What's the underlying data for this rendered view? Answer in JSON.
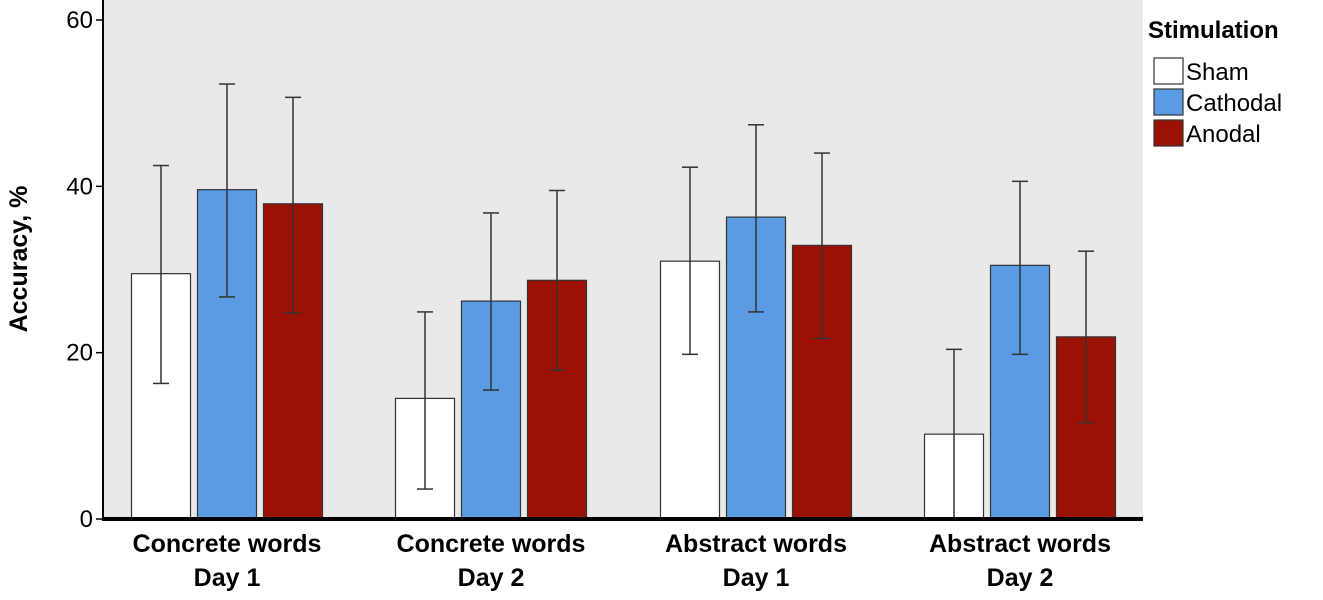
{
  "chart_data": {
    "type": "bar",
    "title": "",
    "xlabel": "",
    "ylabel": "Accuracy, %",
    "ylim": [
      0,
      60
    ],
    "yticks": [
      0,
      20,
      40,
      60
    ],
    "grid": false,
    "background": "#e9e9e9",
    "categories": [
      [
        "Concrete words",
        "Day 1"
      ],
      [
        "Concrete words",
        "Day 2"
      ],
      [
        "Abstract words",
        "Day 1"
      ],
      [
        "Abstract words",
        "Day 2"
      ]
    ],
    "legend": {
      "title": "Stimulation",
      "placement": "right"
    },
    "series": [
      {
        "name": "Sham",
        "color": "#ffffff",
        "values": [
          29.5,
          14.5,
          31.0,
          10.2
        ],
        "error_low": [
          16.3,
          3.6,
          19.8,
          0.0
        ],
        "error_high": [
          42.5,
          24.9,
          42.3,
          20.4
        ]
      },
      {
        "name": "Cathodal",
        "color": "#5a9be3",
        "values": [
          39.6,
          26.2,
          36.3,
          30.5
        ],
        "error_low": [
          26.7,
          15.5,
          24.9,
          19.8
        ],
        "error_high": [
          52.3,
          36.8,
          47.4,
          40.6
        ]
      },
      {
        "name": "Anodal",
        "color": "#9b1205",
        "values": [
          37.9,
          28.7,
          32.9,
          21.9
        ],
        "error_low": [
          24.8,
          17.9,
          21.7,
          11.6
        ],
        "error_high": [
          50.7,
          39.5,
          44.0,
          32.2
        ]
      }
    ]
  }
}
